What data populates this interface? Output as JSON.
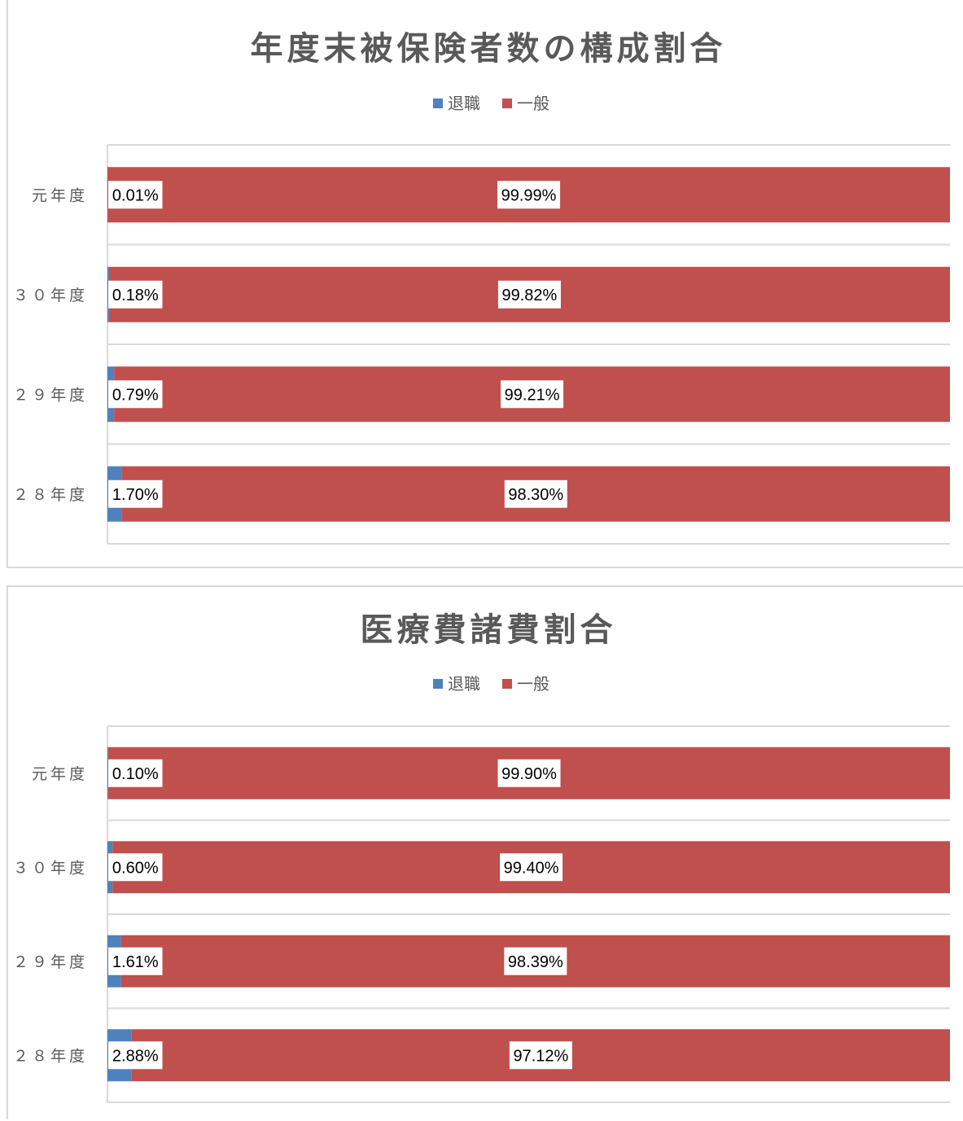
{
  "colors": {
    "retired": "#4f81bd",
    "general": "#c0504d",
    "grid": "#d9d9d9",
    "label_bg": "#ffffff"
  },
  "chart_data": [
    {
      "type": "bar",
      "orientation": "horizontal",
      "stacked": "percent",
      "title": "年度末被保険者数の構成割合",
      "legend_position": "top",
      "categories": [
        "元年度",
        "３０年度",
        "２９年度",
        "２８年度"
      ],
      "series": [
        {
          "name": "退職",
          "values": [
            0.01,
            0.18,
            0.79,
            1.7
          ],
          "labels": [
            "0.01%",
            "0.18%",
            "0.79%",
            "1.70%"
          ]
        },
        {
          "name": "一般",
          "values": [
            99.99,
            99.82,
            99.21,
            98.3
          ],
          "labels": [
            "99.99%",
            "99.82%",
            "99.21%",
            "98.30%"
          ]
        }
      ],
      "xlim": [
        0,
        100
      ],
      "grid": true
    },
    {
      "type": "bar",
      "orientation": "horizontal",
      "stacked": "percent",
      "title": "医療費諸費割合",
      "legend_position": "top",
      "categories": [
        "元年度",
        "３０年度",
        "２９年度",
        "２８年度"
      ],
      "series": [
        {
          "name": "退職",
          "values": [
            0.1,
            0.6,
            1.61,
            2.88
          ],
          "labels": [
            "0.10%",
            "0.60%",
            "1.61%",
            "2.88%"
          ]
        },
        {
          "name": "一般",
          "values": [
            99.9,
            99.4,
            98.39,
            97.12
          ],
          "labels": [
            "99.90%",
            "99.40%",
            "98.39%",
            "97.12%"
          ]
        }
      ],
      "xlim": [
        0,
        100
      ],
      "grid": true
    }
  ]
}
